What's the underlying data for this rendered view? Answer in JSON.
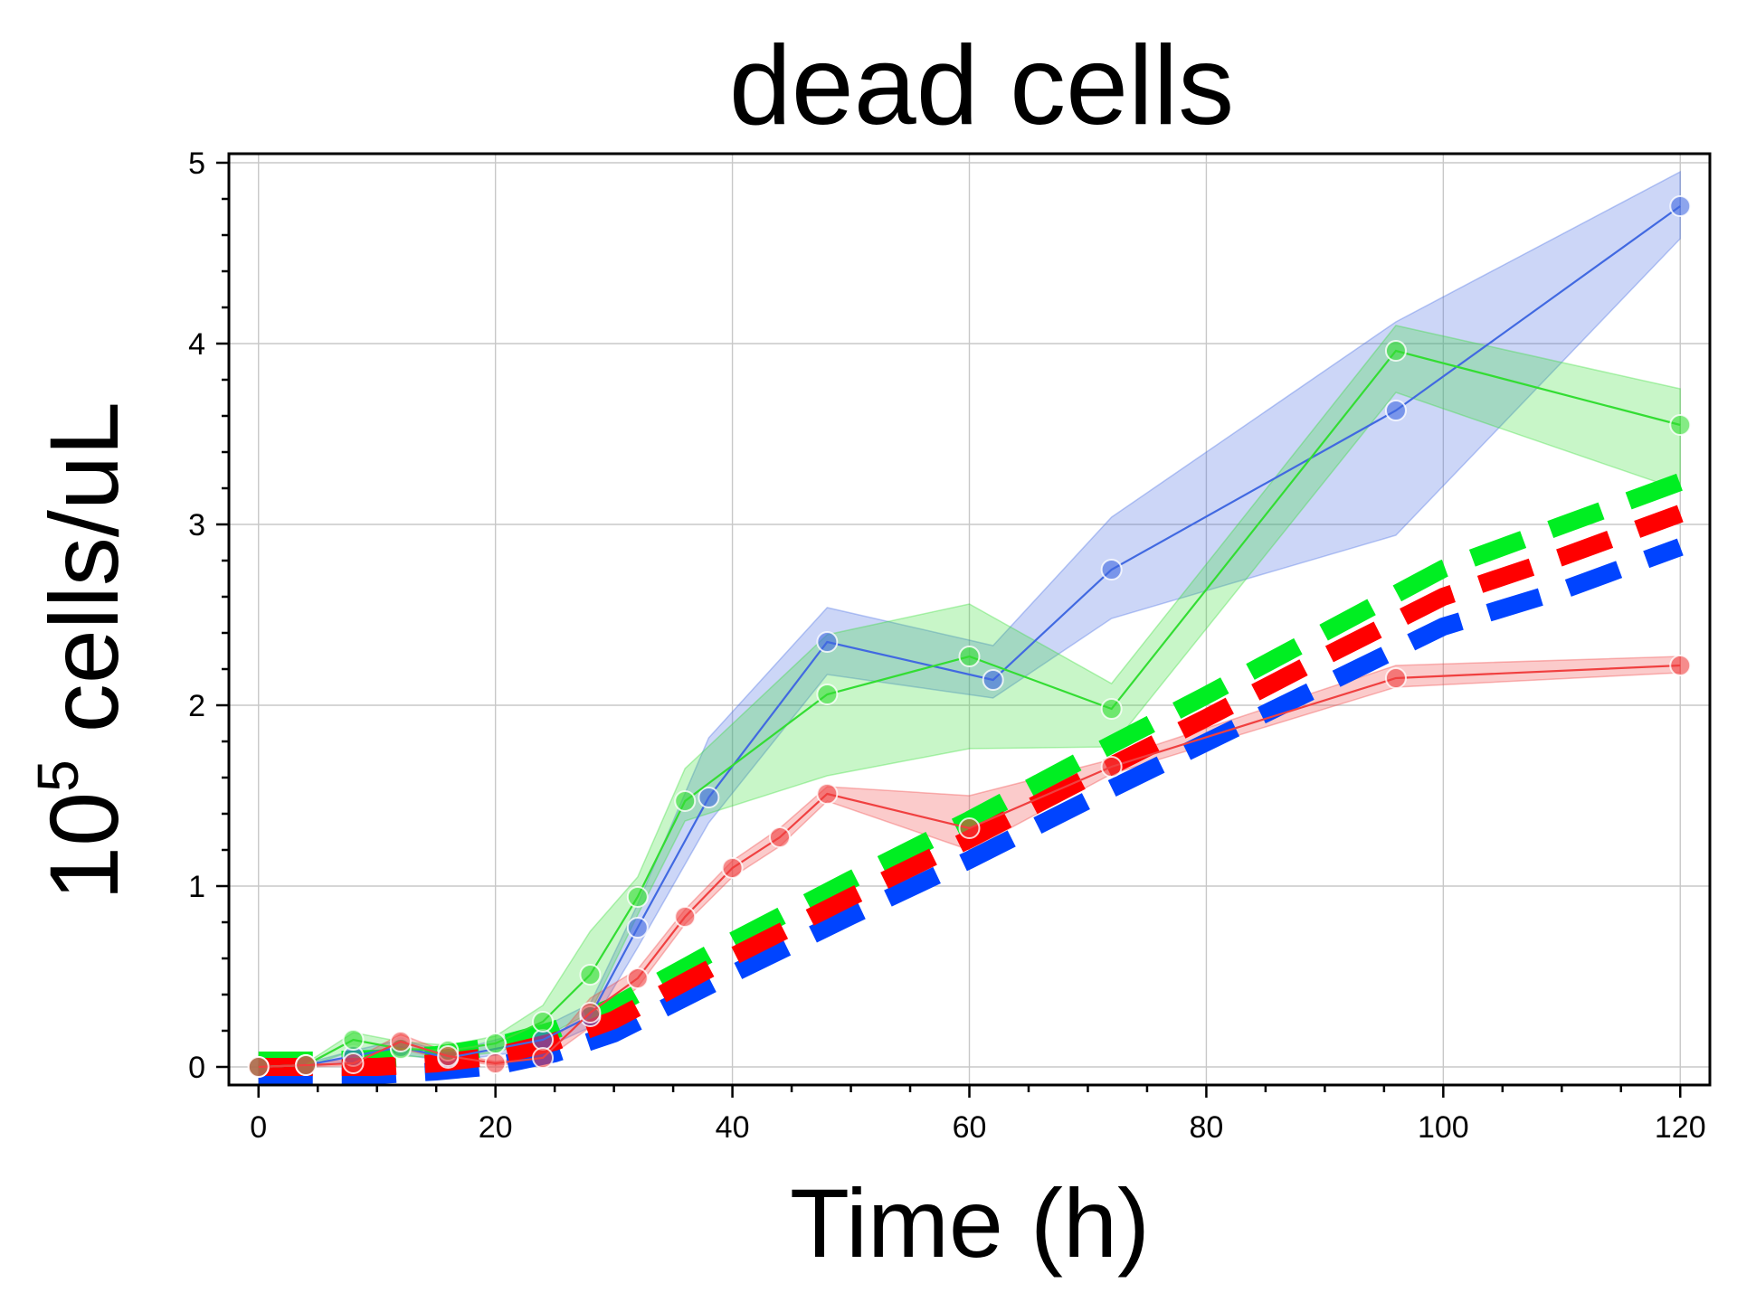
{
  "chart_data": {
    "type": "line",
    "title": "dead cells",
    "xlabel": "Time (h)",
    "ylabel_base": "10",
    "ylabel_exp": "5",
    "ylabel_rest": " cells/uL",
    "xlim": [
      -2.5,
      122.5
    ],
    "ylim": [
      -0.1,
      5.05
    ],
    "xticks": [
      0,
      20,
      40,
      60,
      80,
      100,
      120
    ],
    "yticks": [
      0,
      1,
      2,
      3,
      4,
      5
    ],
    "grid": true,
    "series": [
      {
        "color": "#4169e1",
        "x": [
          0,
          4,
          8,
          12,
          16,
          24,
          28,
          32,
          38,
          48,
          62,
          72,
          96,
          120
        ],
        "y": [
          0.0,
          0.01,
          0.06,
          0.11,
          0.05,
          0.15,
          0.28,
          0.77,
          1.49,
          2.35,
          2.14,
          2.75,
          3.63,
          4.76
        ],
        "lower": [
          0.0,
          0.0,
          0.03,
          0.07,
          0.03,
          0.1,
          0.22,
          0.66,
          1.35,
          2.17,
          2.04,
          2.48,
          2.94,
          4.58
        ],
        "upper": [
          0.01,
          0.02,
          0.09,
          0.15,
          0.08,
          0.22,
          0.35,
          0.9,
          1.82,
          2.54,
          2.33,
          3.04,
          4.12,
          4.95
        ]
      },
      {
        "color": "#33dd33",
        "x": [
          0,
          4,
          8,
          12,
          16,
          20,
          24,
          28,
          32,
          36,
          48,
          60,
          72,
          96,
          120
        ],
        "y": [
          0.0,
          0.01,
          0.15,
          0.1,
          0.09,
          0.13,
          0.25,
          0.51,
          0.94,
          1.47,
          2.06,
          2.27,
          1.98,
          3.96,
          3.55
        ],
        "lower": [
          0.0,
          0.0,
          0.09,
          0.06,
          0.05,
          0.08,
          0.16,
          0.3,
          0.84,
          1.36,
          1.61,
          1.76,
          1.77,
          3.73,
          3.19
        ],
        "upper": [
          0.01,
          0.02,
          0.19,
          0.14,
          0.12,
          0.17,
          0.34,
          0.75,
          1.05,
          1.65,
          2.39,
          2.56,
          2.12,
          4.1,
          3.75
        ]
      },
      {
        "color": "#f04040",
        "x": [
          0,
          4,
          8,
          12,
          16,
          20,
          24,
          28,
          32,
          36,
          40,
          44,
          48,
          60,
          72,
          96,
          120
        ],
        "y": [
          0.0,
          0.01,
          0.02,
          0.14,
          0.06,
          0.02,
          0.05,
          0.3,
          0.49,
          0.83,
          1.1,
          1.27,
          1.51,
          1.32,
          1.66,
          2.15,
          2.22
        ],
        "lower": [
          0.0,
          0.0,
          0.01,
          0.1,
          0.04,
          0.01,
          0.03,
          0.22,
          0.44,
          0.79,
          1.05,
          1.22,
          1.47,
          1.2,
          1.62,
          2.1,
          2.18
        ],
        "upper": [
          0.01,
          0.02,
          0.04,
          0.18,
          0.08,
          0.03,
          0.07,
          0.38,
          0.54,
          0.87,
          1.14,
          1.32,
          1.55,
          1.5,
          1.7,
          2.22,
          2.27
        ]
      }
    ],
    "model_lines": [
      {
        "color": "#00ee22",
        "x": [
          0,
          5,
          10,
          15,
          20,
          25,
          30,
          40,
          50,
          60,
          70,
          80,
          90,
          100,
          110,
          120
        ],
        "y": [
          0.0,
          0.0,
          0.01,
          0.03,
          0.08,
          0.17,
          0.3,
          0.66,
          1.0,
          1.33,
          1.68,
          2.02,
          2.37,
          2.72,
          2.96,
          3.2
        ]
      },
      {
        "color": "#0044ff",
        "x": [
          0,
          5,
          10,
          15,
          20,
          25,
          30,
          40,
          50,
          60,
          70,
          80,
          90,
          100,
          110,
          120
        ],
        "y": [
          0.0,
          0.0,
          0.0,
          0.02,
          0.05,
          0.12,
          0.23,
          0.56,
          0.88,
          1.19,
          1.52,
          1.84,
          2.16,
          2.48,
          2.68,
          2.92
        ]
      },
      {
        "color": "#ff0000",
        "x": [
          0,
          5,
          10,
          15,
          20,
          25,
          30,
          40,
          50,
          60,
          70,
          80,
          90,
          100,
          110,
          120
        ],
        "y": [
          0.0,
          0.0,
          0.0,
          0.02,
          0.06,
          0.14,
          0.26,
          0.61,
          0.94,
          1.26,
          1.6,
          1.93,
          2.27,
          2.6,
          2.82,
          3.06
        ]
      }
    ]
  }
}
